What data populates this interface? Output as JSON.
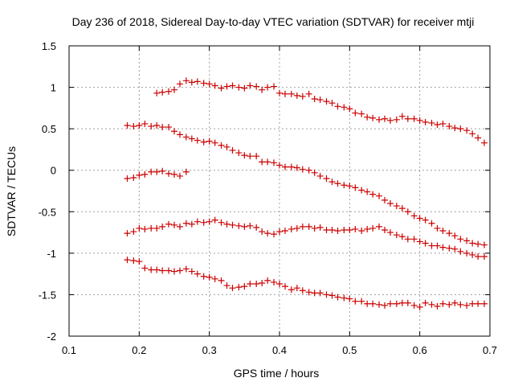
{
  "chart_data": {
    "type": "scatter",
    "title": "Day 236 of 2018, Sidereal Day-to-day VTEC variation (SDTVAR) for receiver mtji",
    "xlabel": "GPS time / hours",
    "ylabel": "SDTVAR / TECUs",
    "xlim": [
      0.1,
      0.7
    ],
    "ylim": [
      -2,
      1.5
    ],
    "xticks": [
      0.1,
      0.2,
      0.3,
      0.4,
      0.5,
      0.6,
      0.7
    ],
    "xtick_labels": [
      "0.1",
      "0.2",
      "0.3",
      "0.4",
      "0.5",
      "0.6",
      "0.7"
    ],
    "yticks": [
      -2,
      -1.5,
      -1,
      -0.5,
      0,
      0.5,
      1,
      1.5
    ],
    "ytick_labels": [
      "-2",
      "-1.5",
      "-1",
      "-0.5",
      "0",
      "0.5",
      "1",
      "1.5"
    ],
    "grid": true,
    "marker": "+",
    "color": "#cc0000",
    "series": [
      {
        "name": "series-1",
        "x": [
          0.225,
          0.233,
          0.242,
          0.25,
          0.258,
          0.267,
          0.275,
          0.283,
          0.292,
          0.3,
          0.308,
          0.317,
          0.325,
          0.333,
          0.342,
          0.35,
          0.358,
          0.367,
          0.375,
          0.383,
          0.392,
          0.4,
          0.408,
          0.417,
          0.425,
          0.433,
          0.442,
          0.45,
          0.458,
          0.467,
          0.475,
          0.483,
          0.492,
          0.5,
          0.508,
          0.517,
          0.525,
          0.533,
          0.542,
          0.55,
          0.558,
          0.567,
          0.575,
          0.583,
          0.592,
          0.6,
          0.608,
          0.617,
          0.625,
          0.633,
          0.642,
          0.65,
          0.658,
          0.667,
          0.675,
          0.683,
          0.692
        ],
        "y": [
          0.93,
          0.94,
          0.95,
          0.97,
          1.04,
          1.08,
          1.06,
          1.07,
          1.05,
          1.04,
          1.02,
          0.99,
          1.01,
          1.02,
          1.0,
          0.99,
          1.02,
          1.01,
          0.97,
          1.0,
          1.01,
          0.93,
          0.92,
          0.92,
          0.9,
          0.89,
          0.92,
          0.86,
          0.85,
          0.83,
          0.81,
          0.77,
          0.76,
          0.74,
          0.69,
          0.68,
          0.64,
          0.63,
          0.61,
          0.62,
          0.6,
          0.61,
          0.65,
          0.62,
          0.62,
          0.6,
          0.58,
          0.57,
          0.55,
          0.56,
          0.53,
          0.51,
          0.5,
          0.48,
          0.44,
          0.39,
          0.33
        ]
      },
      {
        "name": "series-2",
        "x": [
          0.183,
          0.192,
          0.2,
          0.208,
          0.217,
          0.225,
          0.233,
          0.242,
          0.25,
          0.258,
          0.267,
          0.275,
          0.283,
          0.292,
          0.3,
          0.308,
          0.317,
          0.325,
          0.333,
          0.342,
          0.35,
          0.358,
          0.367,
          0.375,
          0.383,
          0.392,
          0.4,
          0.408,
          0.417,
          0.425,
          0.433,
          0.442,
          0.45,
          0.458,
          0.467,
          0.475,
          0.483,
          0.492,
          0.5,
          0.508,
          0.517,
          0.525,
          0.533,
          0.542,
          0.55,
          0.558,
          0.567,
          0.575,
          0.583,
          0.592,
          0.6,
          0.608,
          0.617,
          0.625,
          0.633,
          0.642,
          0.65,
          0.658,
          0.667,
          0.675,
          0.683,
          0.692
        ],
        "y": [
          0.54,
          0.53,
          0.54,
          0.56,
          0.53,
          0.54,
          0.52,
          0.52,
          0.47,
          0.43,
          0.4,
          0.38,
          0.36,
          0.34,
          0.35,
          0.33,
          0.3,
          0.28,
          0.24,
          0.21,
          0.18,
          0.17,
          0.17,
          0.1,
          0.1,
          0.09,
          0.06,
          0.04,
          0.04,
          0.03,
          0.01,
          0.0,
          -0.03,
          -0.07,
          -0.1,
          -0.14,
          -0.16,
          -0.18,
          -0.19,
          -0.21,
          -0.24,
          -0.26,
          -0.29,
          -0.31,
          -0.36,
          -0.4,
          -0.43,
          -0.46,
          -0.5,
          -0.55,
          -0.58,
          -0.6,
          -0.64,
          -0.7,
          -0.73,
          -0.76,
          -0.79,
          -0.83,
          -0.85,
          -0.88,
          -0.89,
          -0.9
        ]
      },
      {
        "name": "series-3",
        "x": [
          0.183,
          0.192,
          0.2,
          0.208,
          0.217,
          0.225,
          0.233,
          0.242,
          0.25,
          0.258,
          0.267
        ],
        "y": [
          -0.1,
          -0.09,
          -0.06,
          -0.05,
          -0.02,
          -0.02,
          -0.01,
          -0.04,
          -0.05,
          -0.07,
          -0.02
        ]
      },
      {
        "name": "series-4",
        "x": [
          0.183,
          0.192,
          0.2,
          0.208,
          0.217,
          0.225,
          0.233,
          0.242,
          0.25,
          0.258,
          0.267,
          0.275,
          0.283,
          0.292,
          0.3,
          0.308,
          0.317,
          0.325,
          0.333,
          0.342,
          0.35,
          0.358,
          0.367,
          0.375,
          0.383,
          0.392,
          0.4,
          0.408,
          0.417,
          0.425,
          0.433,
          0.442,
          0.45,
          0.458,
          0.467,
          0.475,
          0.483,
          0.492,
          0.5,
          0.508,
          0.517,
          0.525,
          0.533,
          0.542,
          0.55,
          0.558,
          0.567,
          0.575,
          0.583,
          0.592,
          0.6,
          0.608,
          0.617,
          0.625,
          0.633,
          0.642,
          0.65,
          0.658,
          0.667,
          0.675,
          0.683,
          0.692
        ],
        "y": [
          -0.76,
          -0.74,
          -0.7,
          -0.71,
          -0.7,
          -0.7,
          -0.68,
          -0.65,
          -0.66,
          -0.68,
          -0.64,
          -0.65,
          -0.62,
          -0.63,
          -0.62,
          -0.6,
          -0.63,
          -0.65,
          -0.66,
          -0.67,
          -0.68,
          -0.67,
          -0.69,
          -0.74,
          -0.76,
          -0.77,
          -0.74,
          -0.73,
          -0.71,
          -0.7,
          -0.68,
          -0.68,
          -0.7,
          -0.69,
          -0.72,
          -0.72,
          -0.73,
          -0.72,
          -0.72,
          -0.71,
          -0.73,
          -0.71,
          -0.7,
          -0.68,
          -0.72,
          -0.75,
          -0.78,
          -0.8,
          -0.83,
          -0.83,
          -0.86,
          -0.88,
          -0.91,
          -0.91,
          -0.93,
          -0.94,
          -0.95,
          -0.98,
          -1.0,
          -1.02,
          -1.04,
          -1.04
        ]
      },
      {
        "name": "series-5",
        "x": [
          0.183,
          0.192,
          0.2,
          0.208,
          0.217,
          0.225,
          0.233,
          0.242,
          0.25,
          0.258,
          0.267,
          0.275,
          0.283,
          0.292,
          0.3,
          0.308,
          0.317,
          0.325,
          0.333,
          0.342,
          0.35,
          0.358,
          0.367,
          0.375,
          0.383,
          0.392,
          0.4,
          0.408,
          0.417,
          0.425,
          0.433,
          0.442,
          0.45,
          0.458,
          0.467,
          0.475,
          0.483,
          0.492,
          0.5,
          0.508,
          0.517,
          0.525,
          0.533,
          0.542,
          0.55,
          0.558,
          0.567,
          0.575,
          0.583,
          0.592,
          0.6,
          0.608,
          0.617,
          0.625,
          0.633,
          0.642,
          0.65,
          0.658,
          0.667,
          0.675,
          0.683,
          0.692
        ],
        "y": [
          -1.08,
          -1.09,
          -1.1,
          -1.18,
          -1.2,
          -1.2,
          -1.21,
          -1.21,
          -1.22,
          -1.21,
          -1.19,
          -1.22,
          -1.25,
          -1.28,
          -1.29,
          -1.31,
          -1.33,
          -1.39,
          -1.42,
          -1.41,
          -1.4,
          -1.37,
          -1.37,
          -1.36,
          -1.33,
          -1.35,
          -1.37,
          -1.4,
          -1.44,
          -1.42,
          -1.45,
          -1.47,
          -1.48,
          -1.48,
          -1.5,
          -1.51,
          -1.53,
          -1.54,
          -1.55,
          -1.58,
          -1.58,
          -1.61,
          -1.61,
          -1.62,
          -1.63,
          -1.61,
          -1.61,
          -1.6,
          -1.6,
          -1.63,
          -1.65,
          -1.6,
          -1.62,
          -1.64,
          -1.61,
          -1.62,
          -1.6,
          -1.62,
          -1.63,
          -1.61,
          -1.61,
          -1.61
        ]
      }
    ]
  }
}
